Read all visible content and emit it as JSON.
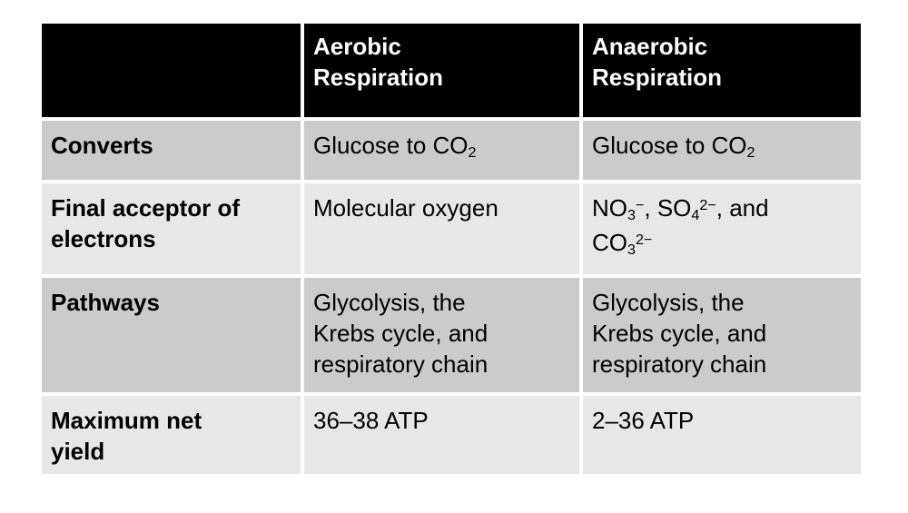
{
  "page": {
    "background": "#ffffff"
  },
  "table": {
    "style": {
      "header_bg": "#000000",
      "header_text": "#ffffff",
      "row_band_dark": "#cbcbcb",
      "row_band_light": "#e7e7e7",
      "body_text": "#000000",
      "grid_gap_color": "#ffffff"
    },
    "header": {
      "corner": "",
      "columns": [
        "Aerobic\nRespiration",
        "Anaerobic\nRespiration"
      ]
    },
    "rows": [
      {
        "label": "Converts",
        "aerobic": [
          {
            "t": "Glucose to CO"
          },
          {
            "t": "2",
            "s": "sub"
          }
        ],
        "anaerobic": [
          {
            "t": "Glucose to CO"
          },
          {
            "t": "2",
            "s": "sub"
          }
        ]
      },
      {
        "label": "Final acceptor of\nelectrons",
        "aerobic": "Molecular oxygen",
        "anaerobic": [
          {
            "t": "NO"
          },
          {
            "t": "3",
            "s": "sub"
          },
          {
            "t": "−",
            "s": "sup"
          },
          {
            "t": ", SO"
          },
          {
            "t": "4",
            "s": "sub"
          },
          {
            "t": "2−",
            "s": "sup"
          },
          {
            "t": ", and\nCO"
          },
          {
            "t": "3",
            "s": "sub"
          },
          {
            "t": "2−",
            "s": "sup"
          }
        ]
      },
      {
        "label": "Pathways",
        "aerobic": "Glycolysis, the\nKrebs cycle, and\nrespiratory chain",
        "anaerobic": "Glycolysis, the\nKrebs cycle, and\nrespiratory chain"
      },
      {
        "label": "Maximum net\nyield",
        "aerobic": "36–38 ATP",
        "anaerobic": "2–36 ATP"
      }
    ]
  }
}
